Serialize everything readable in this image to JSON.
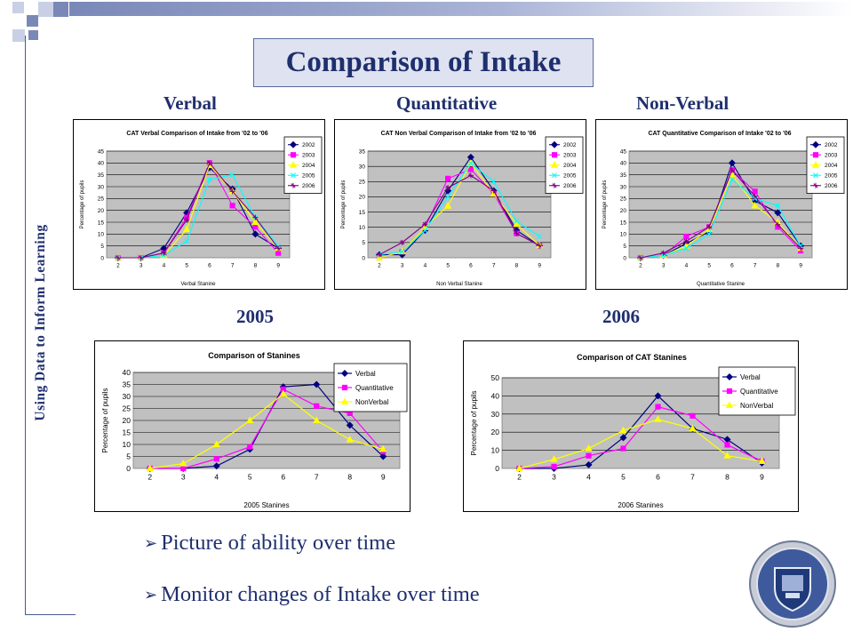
{
  "slide": {
    "title": "Comparison of Intake",
    "side_text": "Using Data to Inform Learning",
    "section_labels": [
      "Verbal",
      "Quantitative",
      "Non-Verbal",
      "2005",
      "2006"
    ],
    "bullets": [
      "Picture of ability over time",
      "Monitor changes of Intake over time"
    ]
  },
  "chart_data": [
    {
      "type": "line",
      "title": "CAT Verbal Comparison of Intake from '02 to '06",
      "xlabel": "Verbal Stanine",
      "ylabel": "Percentage of pupils",
      "x": [
        2,
        3,
        4,
        5,
        6,
        7,
        8,
        9
      ],
      "ylim": [
        0,
        45
      ],
      "yticks": [
        0,
        5,
        10,
        15,
        20,
        25,
        30,
        35,
        40,
        45
      ],
      "series": [
        {
          "name": "2002",
          "values": [
            0,
            0,
            4,
            19,
            38,
            29,
            10,
            4
          ]
        },
        {
          "name": "2003",
          "values": [
            0,
            0,
            2,
            17,
            40,
            22,
            13,
            2
          ]
        },
        {
          "name": "2004",
          "values": [
            0,
            0,
            1,
            12,
            39,
            28,
            15,
            4
          ]
        },
        {
          "name": "2005",
          "values": [
            0,
            0,
            1,
            7,
            33,
            35,
            17,
            5
          ]
        },
        {
          "name": "2006",
          "values": [
            0,
            0,
            2,
            16,
            40,
            28,
            17,
            4
          ]
        }
      ]
    },
    {
      "type": "line",
      "title": "CAT Non Verbal Comparison of Intake from '02 to '06",
      "xlabel": "Non Verbal Stanine",
      "ylabel": "Percentage of pupils",
      "x": [
        2,
        3,
        4,
        5,
        6,
        7,
        8,
        9
      ],
      "ylim": [
        0,
        35
      ],
      "yticks": [
        0,
        5,
        10,
        15,
        20,
        25,
        30,
        35
      ],
      "series": [
        {
          "name": "2002",
          "values": [
            1,
            1,
            9,
            22,
            33,
            22,
            9,
            4
          ]
        },
        {
          "name": "2003",
          "values": [
            0,
            2,
            10,
            26,
            29,
            21,
            8,
            4
          ]
        },
        {
          "name": "2004",
          "values": [
            0,
            2,
            10,
            17,
            31,
            21,
            11,
            4
          ]
        },
        {
          "name": "2005",
          "values": [
            1,
            2,
            9,
            20,
            31,
            25,
            12,
            7
          ]
        },
        {
          "name": "2006",
          "values": [
            1,
            5,
            11,
            23,
            27,
            22,
            8,
            4
          ]
        }
      ]
    },
    {
      "type": "line",
      "title": "CAT Quantitative Comparison of Intake '02 to '06",
      "xlabel": "Quantitative Stanine",
      "ylabel": "Percentage of pupils",
      "x": [
        2,
        3,
        4,
        5,
        6,
        7,
        8,
        9
      ],
      "ylim": [
        0,
        45
      ],
      "yticks": [
        0,
        5,
        10,
        15,
        20,
        25,
        30,
        35,
        40,
        45
      ],
      "series": [
        {
          "name": "2002",
          "values": [
            0,
            1,
            6,
            11,
            40,
            24,
            19,
            5
          ]
        },
        {
          "name": "2003",
          "values": [
            0,
            1,
            9,
            13,
            37,
            28,
            13,
            3
          ]
        },
        {
          "name": "2004",
          "values": [
            0,
            1,
            5,
            12,
            35,
            22,
            15,
            4
          ]
        },
        {
          "name": "2005",
          "values": [
            0,
            1,
            4,
            10,
            33,
            25,
            22,
            5
          ]
        },
        {
          "name": "2006",
          "values": [
            0,
            2,
            7,
            13,
            37,
            26,
            14,
            4
          ]
        }
      ]
    },
    {
      "type": "line",
      "title": "Comparison of Stanines",
      "xlabel": "2005 Stanines",
      "ylabel": "Percentage of pupils",
      "x": [
        2,
        3,
        4,
        5,
        6,
        7,
        8,
        9
      ],
      "ylim": [
        0,
        40
      ],
      "yticks": [
        0,
        5,
        10,
        15,
        20,
        25,
        30,
        35,
        40
      ],
      "series": [
        {
          "name": "Verbal",
          "values": [
            0,
            0,
            1,
            8,
            34,
            35,
            18,
            5
          ]
        },
        {
          "name": "Quantitative",
          "values": [
            0,
            0,
            4,
            9,
            33,
            26,
            23,
            7
          ]
        },
        {
          "name": "NonVerbal",
          "values": [
            0,
            2,
            10,
            20,
            31,
            20,
            12,
            8
          ]
        }
      ]
    },
    {
      "type": "line",
      "title": "Comparison of CAT Stanines",
      "xlabel": "2006 Stanines",
      "ylabel": "Percentage of pupils",
      "x": [
        2,
        3,
        4,
        5,
        6,
        7,
        8,
        9
      ],
      "ylim": [
        0,
        50
      ],
      "yticks": [
        0,
        10,
        20,
        30,
        40,
        50
      ],
      "series": [
        {
          "name": "Verbal",
          "values": [
            0,
            0,
            2,
            17,
            40,
            22,
            16,
            3
          ]
        },
        {
          "name": "Quantitative",
          "values": [
            0,
            1,
            7,
            11,
            34,
            29,
            13,
            4
          ]
        },
        {
          "name": "NonVerbal",
          "values": [
            0,
            5,
            11,
            21,
            27,
            22,
            7,
            4
          ]
        }
      ]
    }
  ],
  "colors": {
    "title_text": "#1f2f6e",
    "title_box_fill": "#dfe3f1",
    "square_dark": "#7a88b8",
    "square_light": "#c9d0e6",
    "plot_bg": "#c0c0c0",
    "series_2002": "#000080",
    "series_2003": "#ff00ff",
    "series_2004": "#ffff00",
    "series_2005": "#00ffff",
    "series_2006": "#800080",
    "verbal": "#000080",
    "quantitative": "#ff00ff",
    "nonverbal": "#ffff00"
  },
  "icons": {
    "bullet": "arrow-bullet-icon",
    "seal": "school-crest-icon"
  }
}
